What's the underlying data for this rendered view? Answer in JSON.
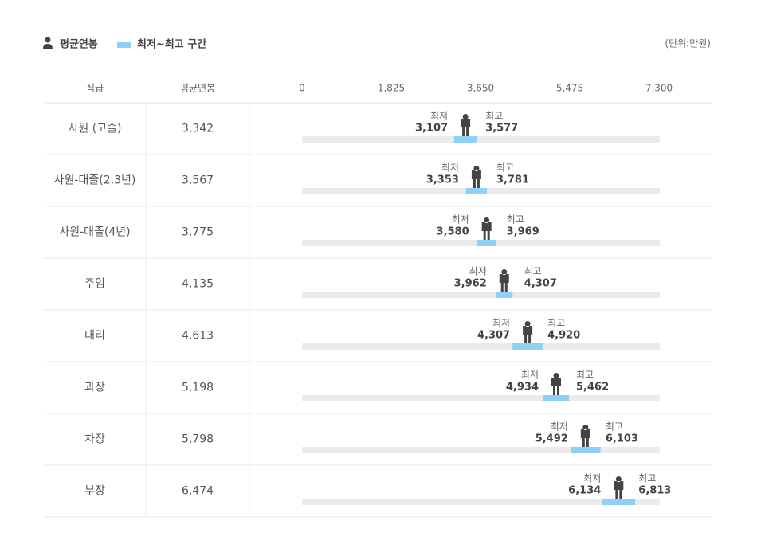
{
  "chart_data": {
    "type": "range",
    "unit": "(단위:만원)",
    "header": "직급",
    "min_label": "최저",
    "max_label": "최고",
    "categories": [
      "사원 (고졸)",
      "사원-대졸(2,3년)",
      "사원-대졸(4년)",
      "주임",
      "대리",
      "과장",
      "차장",
      "부장"
    ],
    "series": [
      {
        "name": "평균연봉",
        "color": "#444444",
        "values": [
          3342,
          3567,
          3775,
          4135,
          4613,
          5198,
          5798,
          6474
        ],
        "value_labels": [
          "3,342",
          "3,567",
          "3,775",
          "4,135",
          "4,613",
          "5,198",
          "5,798",
          "6,474"
        ]
      },
      {
        "name": "최저~최고 구간",
        "color": "#8fd0f7",
        "low": [
          3107,
          3353,
          3580,
          3962,
          4307,
          4934,
          5492,
          6134
        ],
        "low_labels": [
          "3,107",
          "3,353",
          "3,580",
          "3,962",
          "4,307",
          "4,934",
          "5,492",
          "6,134"
        ],
        "high": [
          3577,
          3781,
          3969,
          4307,
          4920,
          5462,
          6103,
          6813
        ],
        "high_labels": [
          "3,577",
          "3,781",
          "3,969",
          "4,307",
          "4,920",
          "5,462",
          "6,103",
          "6,813"
        ]
      }
    ],
    "xlim": [
      0,
      7300
    ],
    "xticks": [
      0,
      {
        "value": 1825,
        "label": "1,825"
      },
      {
        "value": 3650,
        "label": "3,650"
      },
      {
        "value": 5475,
        "label": "5,475"
      },
      {
        "value": 7300,
        "label": "7,300"
      }
    ]
  }
}
